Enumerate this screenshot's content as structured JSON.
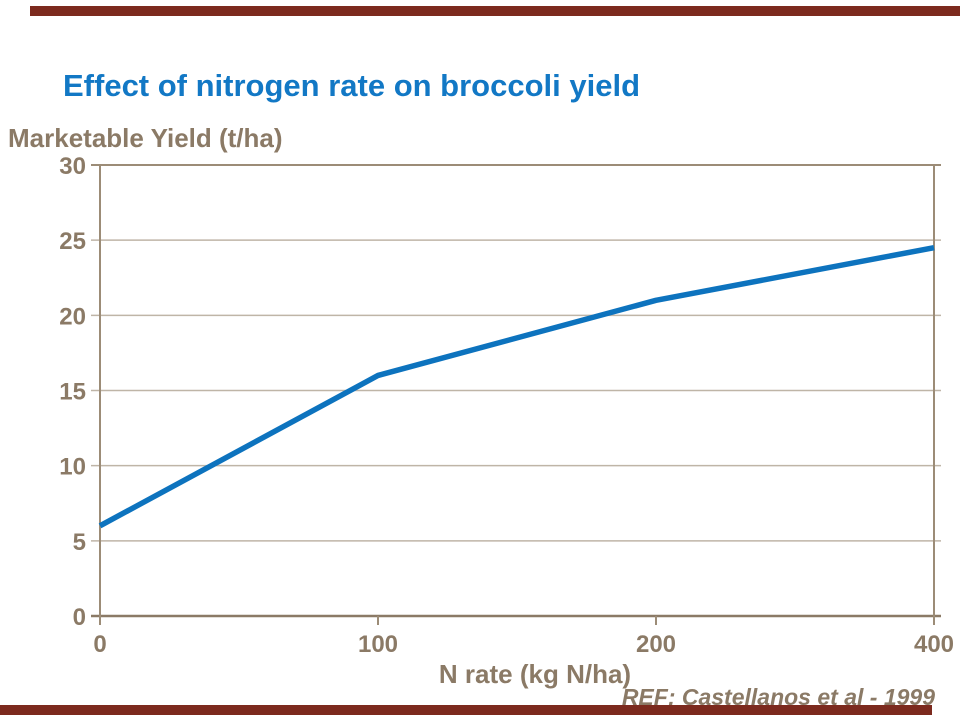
{
  "page": {
    "title": "Effect of nitrogen rate on broccoli yield",
    "ref": "REF: Castellanos et al - 1999",
    "colors": {
      "title_blue": "#1278C5",
      "line_blue": "#0D73BE",
      "text_taupe": "#8B7A66",
      "frame_taupe": "#9C8C77",
      "gridline_taupe": "#BFB5A7",
      "accent_maroon": "#7C2A1E",
      "background": "#FFFFFF"
    }
  },
  "chart_data": {
    "type": "line",
    "title": "Effect of nitrogen rate on broccoli yield",
    "xlabel": "N rate (kg N/ha)",
    "ylabel": "Marketable Yield (t/ha)",
    "categories": [
      "0",
      "100",
      "200",
      "400"
    ],
    "values": [
      6,
      16,
      21,
      24.5
    ],
    "ylim": [
      0,
      30
    ],
    "yticks": [
      0,
      5,
      10,
      15,
      20,
      25,
      30
    ],
    "x_spacing": "categorical-equal",
    "grid": "horizontal",
    "legend": "none",
    "annotations": [
      "REF: Castellanos et al - 1999"
    ]
  }
}
